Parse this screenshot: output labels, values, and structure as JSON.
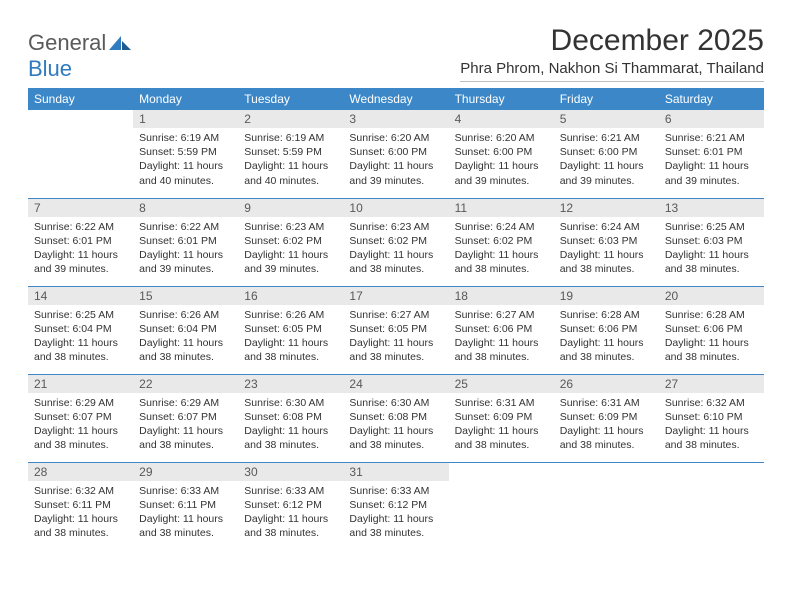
{
  "brand": {
    "name_a": "General",
    "name_b": "Blue"
  },
  "title": "December 2025",
  "subtitle": "Phra Phrom, Nakhon Si Thammarat, Thailand",
  "colors": {
    "header_bg": "#3b87c8",
    "header_text": "#ffffff",
    "daynum_bg": "#e9e9e9",
    "daynum_text": "#595959",
    "cell_border": "#3b87c8",
    "body_text": "#333333",
    "logo_gray": "#5a5a5a",
    "logo_blue": "#2f7bbf"
  },
  "weekdays": [
    "Sunday",
    "Monday",
    "Tuesday",
    "Wednesday",
    "Thursday",
    "Friday",
    "Saturday"
  ],
  "weeks": [
    [
      {
        "day": "",
        "sunrise": "",
        "sunset": "",
        "daylight": ""
      },
      {
        "day": "1",
        "sunrise": "Sunrise: 6:19 AM",
        "sunset": "Sunset: 5:59 PM",
        "daylight": "Daylight: 11 hours and 40 minutes."
      },
      {
        "day": "2",
        "sunrise": "Sunrise: 6:19 AM",
        "sunset": "Sunset: 5:59 PM",
        "daylight": "Daylight: 11 hours and 40 minutes."
      },
      {
        "day": "3",
        "sunrise": "Sunrise: 6:20 AM",
        "sunset": "Sunset: 6:00 PM",
        "daylight": "Daylight: 11 hours and 39 minutes."
      },
      {
        "day": "4",
        "sunrise": "Sunrise: 6:20 AM",
        "sunset": "Sunset: 6:00 PM",
        "daylight": "Daylight: 11 hours and 39 minutes."
      },
      {
        "day": "5",
        "sunrise": "Sunrise: 6:21 AM",
        "sunset": "Sunset: 6:00 PM",
        "daylight": "Daylight: 11 hours and 39 minutes."
      },
      {
        "day": "6",
        "sunrise": "Sunrise: 6:21 AM",
        "sunset": "Sunset: 6:01 PM",
        "daylight": "Daylight: 11 hours and 39 minutes."
      }
    ],
    [
      {
        "day": "7",
        "sunrise": "Sunrise: 6:22 AM",
        "sunset": "Sunset: 6:01 PM",
        "daylight": "Daylight: 11 hours and 39 minutes."
      },
      {
        "day": "8",
        "sunrise": "Sunrise: 6:22 AM",
        "sunset": "Sunset: 6:01 PM",
        "daylight": "Daylight: 11 hours and 39 minutes."
      },
      {
        "day": "9",
        "sunrise": "Sunrise: 6:23 AM",
        "sunset": "Sunset: 6:02 PM",
        "daylight": "Daylight: 11 hours and 39 minutes."
      },
      {
        "day": "10",
        "sunrise": "Sunrise: 6:23 AM",
        "sunset": "Sunset: 6:02 PM",
        "daylight": "Daylight: 11 hours and 38 minutes."
      },
      {
        "day": "11",
        "sunrise": "Sunrise: 6:24 AM",
        "sunset": "Sunset: 6:02 PM",
        "daylight": "Daylight: 11 hours and 38 minutes."
      },
      {
        "day": "12",
        "sunrise": "Sunrise: 6:24 AM",
        "sunset": "Sunset: 6:03 PM",
        "daylight": "Daylight: 11 hours and 38 minutes."
      },
      {
        "day": "13",
        "sunrise": "Sunrise: 6:25 AM",
        "sunset": "Sunset: 6:03 PM",
        "daylight": "Daylight: 11 hours and 38 minutes."
      }
    ],
    [
      {
        "day": "14",
        "sunrise": "Sunrise: 6:25 AM",
        "sunset": "Sunset: 6:04 PM",
        "daylight": "Daylight: 11 hours and 38 minutes."
      },
      {
        "day": "15",
        "sunrise": "Sunrise: 6:26 AM",
        "sunset": "Sunset: 6:04 PM",
        "daylight": "Daylight: 11 hours and 38 minutes."
      },
      {
        "day": "16",
        "sunrise": "Sunrise: 6:26 AM",
        "sunset": "Sunset: 6:05 PM",
        "daylight": "Daylight: 11 hours and 38 minutes."
      },
      {
        "day": "17",
        "sunrise": "Sunrise: 6:27 AM",
        "sunset": "Sunset: 6:05 PM",
        "daylight": "Daylight: 11 hours and 38 minutes."
      },
      {
        "day": "18",
        "sunrise": "Sunrise: 6:27 AM",
        "sunset": "Sunset: 6:06 PM",
        "daylight": "Daylight: 11 hours and 38 minutes."
      },
      {
        "day": "19",
        "sunrise": "Sunrise: 6:28 AM",
        "sunset": "Sunset: 6:06 PM",
        "daylight": "Daylight: 11 hours and 38 minutes."
      },
      {
        "day": "20",
        "sunrise": "Sunrise: 6:28 AM",
        "sunset": "Sunset: 6:06 PM",
        "daylight": "Daylight: 11 hours and 38 minutes."
      }
    ],
    [
      {
        "day": "21",
        "sunrise": "Sunrise: 6:29 AM",
        "sunset": "Sunset: 6:07 PM",
        "daylight": "Daylight: 11 hours and 38 minutes."
      },
      {
        "day": "22",
        "sunrise": "Sunrise: 6:29 AM",
        "sunset": "Sunset: 6:07 PM",
        "daylight": "Daylight: 11 hours and 38 minutes."
      },
      {
        "day": "23",
        "sunrise": "Sunrise: 6:30 AM",
        "sunset": "Sunset: 6:08 PM",
        "daylight": "Daylight: 11 hours and 38 minutes."
      },
      {
        "day": "24",
        "sunrise": "Sunrise: 6:30 AM",
        "sunset": "Sunset: 6:08 PM",
        "daylight": "Daylight: 11 hours and 38 minutes."
      },
      {
        "day": "25",
        "sunrise": "Sunrise: 6:31 AM",
        "sunset": "Sunset: 6:09 PM",
        "daylight": "Daylight: 11 hours and 38 minutes."
      },
      {
        "day": "26",
        "sunrise": "Sunrise: 6:31 AM",
        "sunset": "Sunset: 6:09 PM",
        "daylight": "Daylight: 11 hours and 38 minutes."
      },
      {
        "day": "27",
        "sunrise": "Sunrise: 6:32 AM",
        "sunset": "Sunset: 6:10 PM",
        "daylight": "Daylight: 11 hours and 38 minutes."
      }
    ],
    [
      {
        "day": "28",
        "sunrise": "Sunrise: 6:32 AM",
        "sunset": "Sunset: 6:11 PM",
        "daylight": "Daylight: 11 hours and 38 minutes."
      },
      {
        "day": "29",
        "sunrise": "Sunrise: 6:33 AM",
        "sunset": "Sunset: 6:11 PM",
        "daylight": "Daylight: 11 hours and 38 minutes."
      },
      {
        "day": "30",
        "sunrise": "Sunrise: 6:33 AM",
        "sunset": "Sunset: 6:12 PM",
        "daylight": "Daylight: 11 hours and 38 minutes."
      },
      {
        "day": "31",
        "sunrise": "Sunrise: 6:33 AM",
        "sunset": "Sunset: 6:12 PM",
        "daylight": "Daylight: 11 hours and 38 minutes."
      },
      {
        "day": "",
        "sunrise": "",
        "sunset": "",
        "daylight": ""
      },
      {
        "day": "",
        "sunrise": "",
        "sunset": "",
        "daylight": ""
      },
      {
        "day": "",
        "sunrise": "",
        "sunset": "",
        "daylight": ""
      }
    ]
  ]
}
